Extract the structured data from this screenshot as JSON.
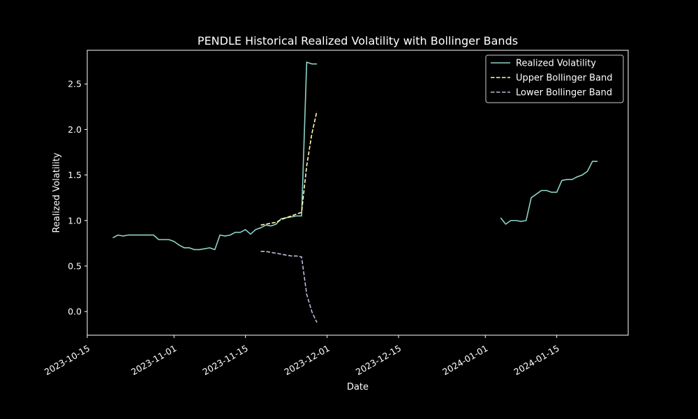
{
  "chart_data": {
    "type": "line",
    "title": "PENDLE Historical Realized Volatility with Bollinger Bands",
    "xlabel": "Date",
    "ylabel": "Realized Volatility",
    "xlim": [
      "2023-10-15",
      "2024-01-29"
    ],
    "ylim": [
      -0.26,
      2.87
    ],
    "x_ticks": [
      "2023-10-15",
      "2023-11-01",
      "2023-11-15",
      "2023-12-01",
      "2023-12-15",
      "2024-01-01",
      "2024-01-15"
    ],
    "y_ticks": [
      0.0,
      0.5,
      1.0,
      1.5,
      2.0,
      2.5
    ],
    "y_tick_labels": [
      "0.0",
      "0.5",
      "1.0",
      "1.5",
      "2.0",
      "2.5"
    ],
    "legend_position": "top-right",
    "colors": {
      "background": "#000000",
      "axes": "#ffffff",
      "realized": "#8dd3c7",
      "upper": "#ffffb3",
      "lower": "#bebada"
    },
    "series": [
      {
        "name": "Realized Volatility",
        "style": "solid",
        "segments": [
          [
            [
              "2023-10-20",
              0.81
            ],
            [
              "2023-10-21",
              0.84
            ],
            [
              "2023-10-22",
              0.83
            ],
            [
              "2023-10-23",
              0.84
            ],
            [
              "2023-10-24",
              0.84
            ],
            [
              "2023-10-25",
              0.84
            ],
            [
              "2023-10-26",
              0.84
            ],
            [
              "2023-10-27",
              0.84
            ],
            [
              "2023-10-28",
              0.84
            ],
            [
              "2023-10-29",
              0.79
            ],
            [
              "2023-10-30",
              0.79
            ],
            [
              "2023-10-31",
              0.79
            ],
            [
              "2023-11-01",
              0.77
            ],
            [
              "2023-11-02",
              0.73
            ],
            [
              "2023-11-03",
              0.7
            ],
            [
              "2023-11-04",
              0.7
            ],
            [
              "2023-11-05",
              0.68
            ],
            [
              "2023-11-06",
              0.68
            ],
            [
              "2023-11-07",
              0.69
            ],
            [
              "2023-11-08",
              0.7
            ],
            [
              "2023-11-09",
              0.68
            ],
            [
              "2023-11-10",
              0.84
            ],
            [
              "2023-11-11",
              0.83
            ],
            [
              "2023-11-12",
              0.84
            ],
            [
              "2023-11-13",
              0.87
            ],
            [
              "2023-11-14",
              0.87
            ],
            [
              "2023-11-15",
              0.9
            ],
            [
              "2023-11-16",
              0.85
            ],
            [
              "2023-11-17",
              0.9
            ],
            [
              "2023-11-18",
              0.92
            ],
            [
              "2023-11-19",
              0.95
            ],
            [
              "2023-11-20",
              0.94
            ],
            [
              "2023-11-21",
              0.96
            ],
            [
              "2023-11-22",
              1.02
            ],
            [
              "2023-11-23",
              1.03
            ],
            [
              "2023-11-24",
              1.04
            ],
            [
              "2023-11-25",
              1.05
            ],
            [
              "2023-11-26",
              1.05
            ],
            [
              "2023-11-27",
              2.74
            ],
            [
              "2023-11-28",
              2.72
            ],
            [
              "2023-11-29",
              2.72
            ]
          ],
          [
            [
              "2024-01-04",
              1.03
            ],
            [
              "2024-01-05",
              0.96
            ],
            [
              "2024-01-06",
              1.0
            ],
            [
              "2024-01-07",
              1.0
            ],
            [
              "2024-01-08",
              0.99
            ],
            [
              "2024-01-09",
              1.0
            ],
            [
              "2024-01-10",
              1.25
            ],
            [
              "2024-01-11",
              1.29
            ],
            [
              "2024-01-12",
              1.33
            ],
            [
              "2024-01-13",
              1.33
            ],
            [
              "2024-01-14",
              1.31
            ],
            [
              "2024-01-15",
              1.31
            ],
            [
              "2024-01-16",
              1.44
            ],
            [
              "2024-01-17",
              1.45
            ],
            [
              "2024-01-18",
              1.45
            ],
            [
              "2024-01-19",
              1.48
            ],
            [
              "2024-01-20",
              1.5
            ],
            [
              "2024-01-21",
              1.54
            ],
            [
              "2024-01-22",
              1.65
            ],
            [
              "2024-01-23",
              1.65
            ]
          ]
        ]
      },
      {
        "name": "Upper Bollinger Band",
        "style": "dashed",
        "segments": [
          [
            [
              "2023-11-18",
              0.95
            ],
            [
              "2023-11-19",
              0.96
            ],
            [
              "2023-11-20",
              0.97
            ],
            [
              "2023-11-21",
              0.98
            ],
            [
              "2023-11-22",
              1.01
            ],
            [
              "2023-11-23",
              1.03
            ],
            [
              "2023-11-24",
              1.05
            ],
            [
              "2023-11-25",
              1.07
            ],
            [
              "2023-11-26",
              1.09
            ],
            [
              "2023-11-27",
              1.6
            ],
            [
              "2023-11-28",
              1.95
            ],
            [
              "2023-11-29",
              2.2
            ]
          ]
        ]
      },
      {
        "name": "Lower Bollinger Band",
        "style": "dashed",
        "segments": [
          [
            [
              "2023-11-18",
              0.66
            ],
            [
              "2023-11-19",
              0.66
            ],
            [
              "2023-11-20",
              0.65
            ],
            [
              "2023-11-21",
              0.64
            ],
            [
              "2023-11-22",
              0.63
            ],
            [
              "2023-11-23",
              0.62
            ],
            [
              "2023-11-24",
              0.61
            ],
            [
              "2023-11-25",
              0.61
            ],
            [
              "2023-11-26",
              0.6
            ],
            [
              "2023-11-27",
              0.19
            ],
            [
              "2023-11-28",
              0.0
            ],
            [
              "2023-11-29",
              -0.12
            ]
          ]
        ]
      }
    ]
  }
}
